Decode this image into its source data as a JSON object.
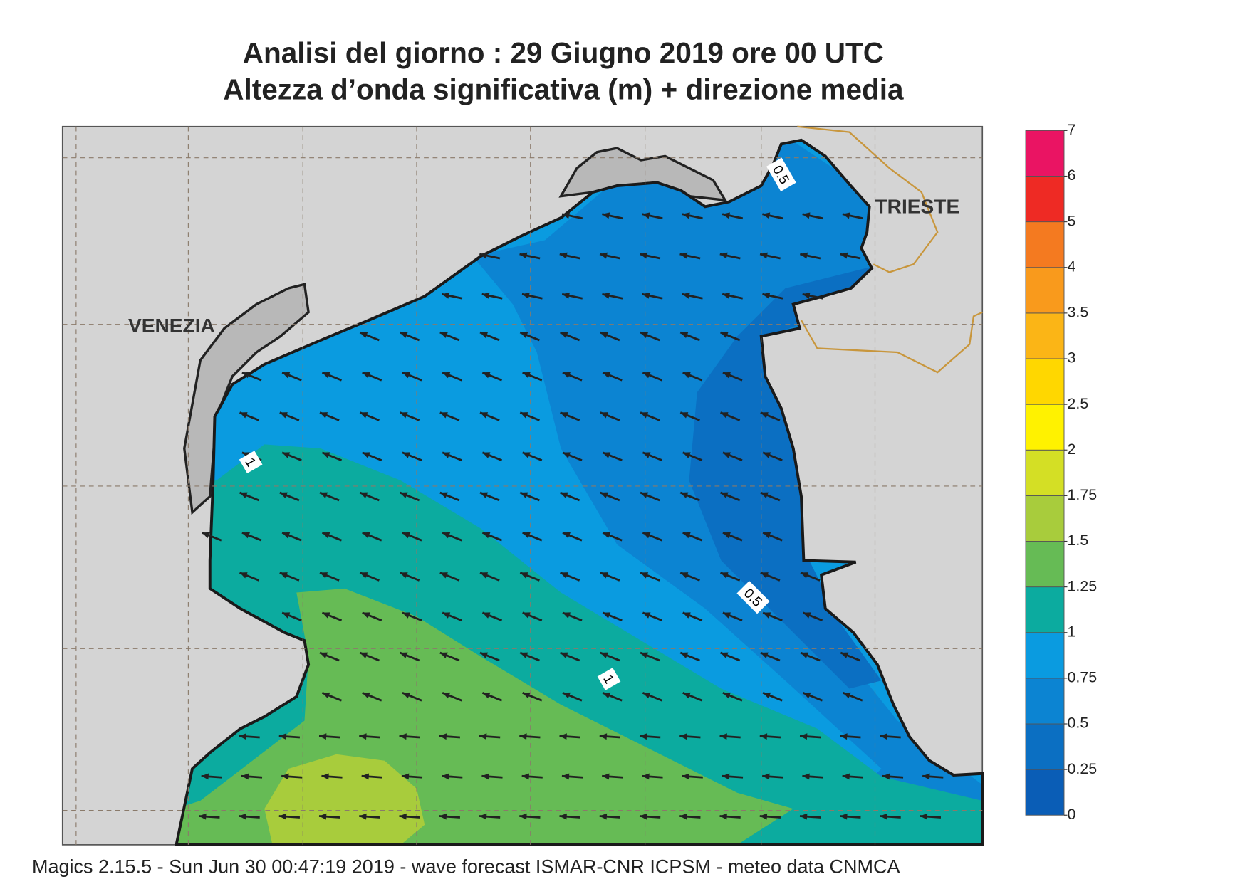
{
  "header": {
    "title": "Analisi del giorno :  29   Giugno  2019   ore 00 UTC",
    "subtitle": "Altezza d’onda significativa (m) + direzione media"
  },
  "map": {
    "cities": [
      "VENEZIA",
      "TRIESTE"
    ],
    "contour_labels": [
      "0.5",
      "1",
      "0.5",
      "1"
    ]
  },
  "colorbar": {
    "ticks": [
      0,
      0.25,
      0.5,
      0.75,
      1,
      1.25,
      1.5,
      1.75,
      2,
      2.5,
      3,
      3.5,
      4,
      5,
      6,
      7
    ],
    "colors": [
      "#0a5db6",
      "#0b6fc2",
      "#0c84d2",
      "#0a9be0",
      "#0cab9f",
      "#66bb55",
      "#a8cc3c",
      "#d4df25",
      "#fff200",
      "#ffd700",
      "#fbb516",
      "#f99a1c",
      "#f47a20",
      "#ee2a24",
      "#ea1463"
    ]
  },
  "footer": "Magics 2.15.5 - Sun Jun 30 00:47:19 2019 - wave forecast  ISMAR-CNR  ICPSM - meteo data   CNMCA"
}
